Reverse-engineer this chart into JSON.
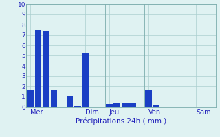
{
  "title": "Précipitations 24h ( mm )",
  "bar_color": "#1a3fc4",
  "bg_color": "#dff2f2",
  "grid_color": "#aacfcf",
  "axis_label_color": "#2222bb",
  "ylim": [
    0,
    10
  ],
  "yticks": [
    0,
    1,
    2,
    3,
    4,
    5,
    6,
    7,
    8,
    9,
    10
  ],
  "values": [
    1.7,
    7.5,
    7.4,
    1.7,
    0.0,
    1.1,
    0.1,
    5.2,
    0.0,
    0.0,
    0.3,
    0.4,
    0.4,
    0.4,
    0.0,
    1.6,
    0.2,
    0.0,
    0.0,
    0.0,
    0.0,
    0.0,
    0.0,
    0.0
  ],
  "day_labels": [
    "Mer",
    "Dim",
    "Jeu",
    "Ven",
    "Sam"
  ],
  "day_tick_positions": [
    0,
    7,
    10,
    15,
    21
  ],
  "day_separator_positions": [
    0,
    7,
    10,
    15,
    21
  ],
  "n_bars": 24,
  "bar_width": 0.85,
  "xlabel_fontsize": 7.5,
  "ytick_fontsize": 6.5,
  "xtick_fontsize": 7.0
}
